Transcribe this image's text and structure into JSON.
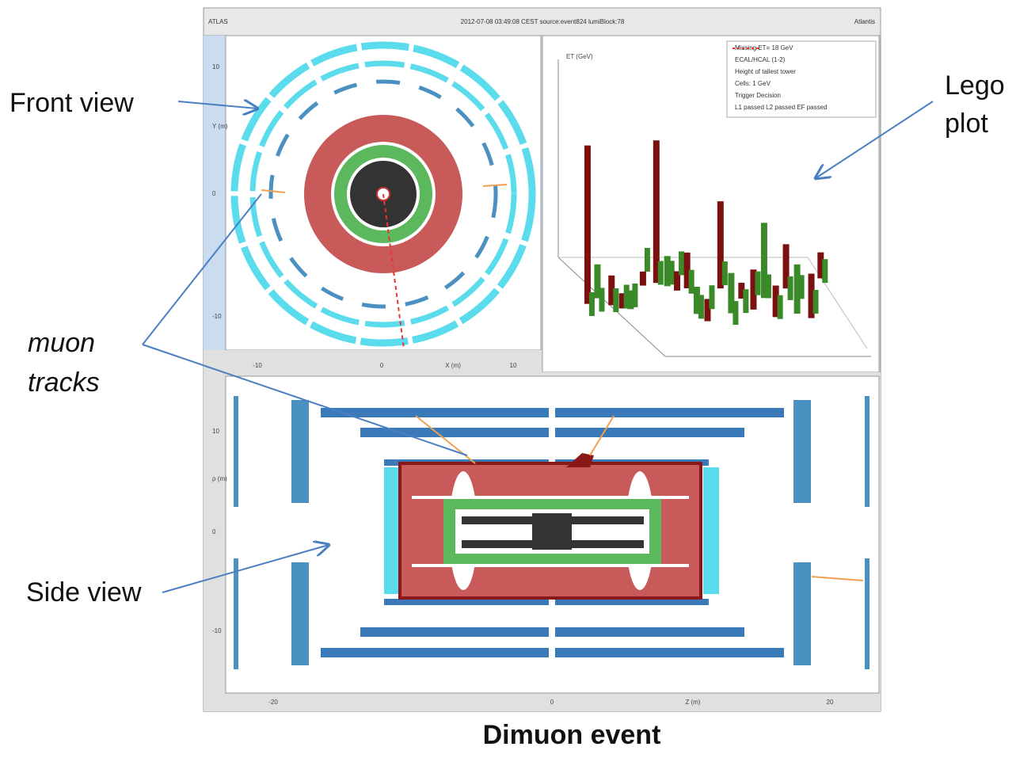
{
  "header": {
    "left": "ATLAS",
    "center": "2012-07-08 03:49:08 CEST source:event824 lumiBlock:78",
    "right": "Atlantis"
  },
  "front_view": {
    "y_label": "Y (m)",
    "y_ticks": [
      "10",
      "0",
      "-10"
    ],
    "x_ticks": [
      "-10",
      "0",
      "X (m)",
      "10"
    ]
  },
  "lego_plot": {
    "axis_label": "ET (GeV)",
    "legend": [
      "Missing ET= 18 GeV",
      "ECAL/HCAL (1-2)",
      "Height of tallest tower",
      "Cells: 1 GeV",
      "Trigger Decision",
      "L1 passed L2 passed EF passed"
    ]
  },
  "side_view": {
    "y_label": "ρ (m)",
    "y_ticks": [
      "10",
      "0",
      "-10"
    ],
    "x_ticks": [
      "-20",
      "0",
      "Z (m)",
      "20"
    ]
  },
  "annotations": {
    "front_view": "Front view",
    "lego_plot": [
      "Lego",
      "plot"
    ],
    "muon_tracks": [
      "muon",
      "tracks"
    ],
    "side_view": "Side view",
    "caption": "Dimuon event"
  }
}
